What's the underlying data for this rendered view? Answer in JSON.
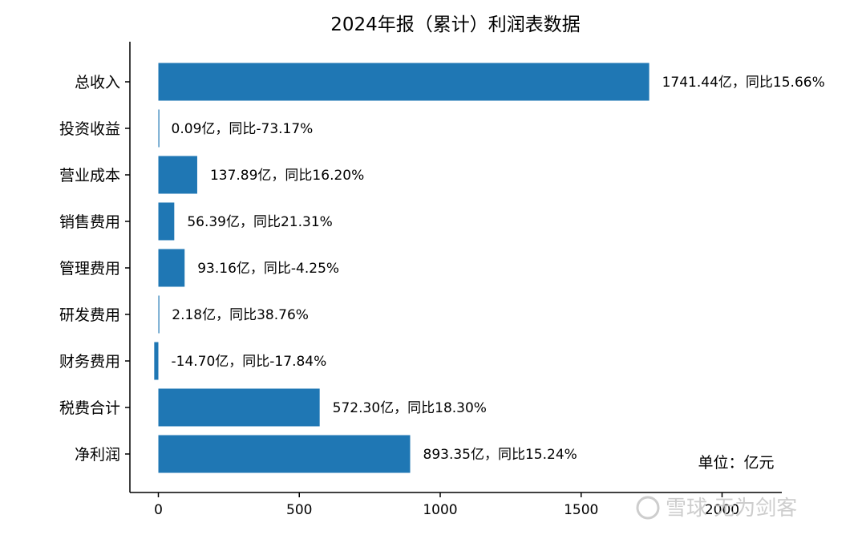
{
  "chart_data": {
    "type": "bar",
    "orientation": "horizontal",
    "title": "2024年报（累计）利润表数据",
    "categories": [
      "总收入",
      "投资收益",
      "营业成本",
      "销售费用",
      "管理费用",
      "研发费用",
      "财务费用",
      "税费合计",
      "净利润"
    ],
    "values": [
      1741.44,
      0.09,
      137.89,
      56.39,
      93.16,
      2.18,
      -14.7,
      572.3,
      893.35
    ],
    "data_labels": [
      "1741.44亿，同比15.66%",
      "0.09亿，同比-73.17%",
      "137.89亿，同比16.20%",
      "56.39亿，同比21.31%",
      "93.16亿，同比-4.25%",
      "2.18亿，同比38.76%",
      "-14.70亿，同比-17.84%",
      "572.30亿，同比18.30%",
      "893.35亿，同比15.24%"
    ],
    "x_ticks": [
      0,
      500,
      1000,
      1500,
      2000
    ],
    "xlim": [
      -100,
      2200
    ],
    "bar_color": "#1f77b4",
    "unit_note": "单位：亿元",
    "grid": false
  },
  "watermark": "雪球 无为剑客"
}
